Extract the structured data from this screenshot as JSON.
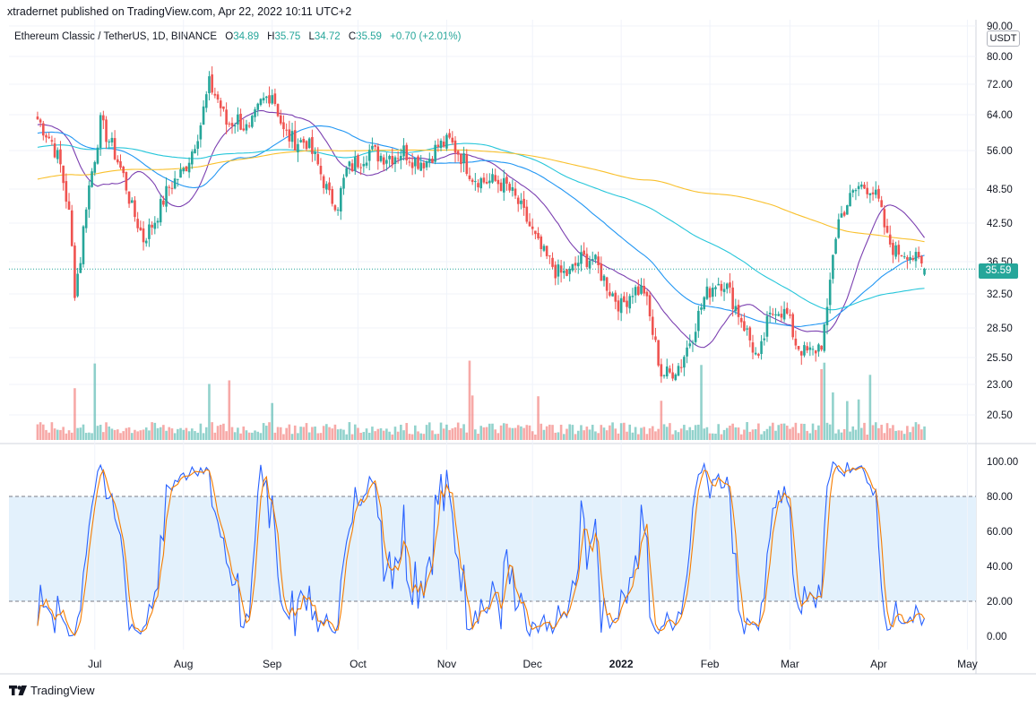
{
  "publisher": "xtradernet published on TradingView.com, Apr 22, 2022 10:11 UTC+2",
  "legend": {
    "symbol": "Ethereum Classic / TetherUS, 1D, BINANCE",
    "open_label": "O",
    "open": "34.89",
    "high_label": "H",
    "high": "35.75",
    "low_label": "L",
    "low": "34.72",
    "close_label": "C",
    "close": "35.59",
    "change": "+0.70 (+2.01%)"
  },
  "currency": "USDT",
  "last_price": "35.59",
  "brand": "TradingView",
  "colors": {
    "up": "#26a69a",
    "down": "#ef5350",
    "ma_short": "#7b3fb0",
    "ma_mid": "#2196f3",
    "ma_long": "#26c6da",
    "ma_200": "#f9c02c",
    "stoch_k": "#2962ff",
    "stoch_d": "#f57c00",
    "band": "#e3f1fc"
  },
  "chart_data": [
    {
      "type": "candlestick",
      "price_axis_labels": [
        "90.00",
        "80.00",
        "72.00",
        "64.00",
        "56.00",
        "48.50",
        "42.50",
        "36.50",
        "32.50",
        "28.50",
        "25.50",
        "23.00",
        "20.50"
      ],
      "price_ticks": [
        90,
        80,
        72,
        64,
        56,
        48.5,
        42.5,
        36.5,
        32.5,
        28.5,
        25.5,
        23,
        20.5
      ],
      "x_labels": [
        "Jul",
        "Aug",
        "Sep",
        "Oct",
        "Nov",
        "Dec",
        "2022",
        "Feb",
        "Mar",
        "Apr",
        "May"
      ],
      "x_label_days": [
        20,
        51,
        82,
        112,
        143,
        173,
        204,
        235,
        263,
        294,
        325
      ],
      "date_range": [
        "2021-06-11",
        "2022-04-22"
      ],
      "close_anchors": [
        [
          0,
          63
        ],
        [
          5,
          58
        ],
        [
          8,
          53
        ],
        [
          11,
          44
        ],
        [
          13,
          33
        ],
        [
          15,
          37
        ],
        [
          17,
          46
        ],
        [
          20,
          55
        ],
        [
          22,
          62
        ],
        [
          26,
          57
        ],
        [
          30,
          51
        ],
        [
          33,
          45
        ],
        [
          37,
          40
        ],
        [
          41,
          43
        ],
        [
          46,
          49
        ],
        [
          51,
          52
        ],
        [
          54,
          56
        ],
        [
          57,
          62
        ],
        [
          60,
          72
        ],
        [
          63,
          68
        ],
        [
          66,
          62
        ],
        [
          70,
          63
        ],
        [
          74,
          60
        ],
        [
          78,
          67
        ],
        [
          82,
          70
        ],
        [
          86,
          60
        ],
        [
          90,
          58
        ],
        [
          94,
          58
        ],
        [
          98,
          53
        ],
        [
          102,
          47
        ],
        [
          105,
          46
        ],
        [
          108,
          52
        ],
        [
          112,
          54
        ],
        [
          116,
          56
        ],
        [
          120,
          55
        ],
        [
          124,
          55
        ],
        [
          128,
          56
        ],
        [
          132,
          54
        ],
        [
          136,
          54
        ],
        [
          140,
          57
        ],
        [
          144,
          58
        ],
        [
          148,
          55
        ],
        [
          152,
          51
        ],
        [
          156,
          50
        ],
        [
          160,
          50
        ],
        [
          164,
          49
        ],
        [
          168,
          46
        ],
        [
          172,
          42
        ],
        [
          175,
          39
        ],
        [
          178,
          37
        ],
        [
          182,
          35
        ],
        [
          186,
          35
        ],
        [
          190,
          37
        ],
        [
          194,
          37
        ],
        [
          197,
          35
        ],
        [
          200,
          33
        ],
        [
          204,
          31
        ],
        [
          208,
          33
        ],
        [
          212,
          33
        ],
        [
          215,
          28
        ],
        [
          218,
          24
        ],
        [
          221,
          24
        ],
        [
          225,
          25
        ],
        [
          229,
          28
        ],
        [
          233,
          32
        ],
        [
          237,
          34
        ],
        [
          240,
          34
        ],
        [
          244,
          31
        ],
        [
          248,
          28
        ],
        [
          252,
          25
        ],
        [
          255,
          29
        ],
        [
          258,
          31
        ],
        [
          262,
          30
        ],
        [
          265,
          27
        ],
        [
          268,
          26
        ],
        [
          271,
          26
        ],
        [
          274,
          27
        ],
        [
          276,
          30
        ],
        [
          278,
          38
        ],
        [
          280,
          43
        ],
        [
          283,
          46
        ],
        [
          287,
          49
        ],
        [
          291,
          49
        ],
        [
          294,
          46
        ],
        [
          297,
          40
        ],
        [
          300,
          38
        ],
        [
          304,
          38
        ],
        [
          310,
          35.59
        ]
      ],
      "moving_averages": [
        {
          "key": "ma_short",
          "period": 20
        },
        {
          "key": "ma_mid",
          "period": 50
        },
        {
          "key": "ma_long",
          "period": 100
        },
        {
          "key": "ma_200",
          "period": 200
        }
      ],
      "volume_spike_days": [
        13,
        20,
        60,
        67,
        82,
        151,
        152,
        175,
        218,
        232,
        274,
        275,
        278,
        283,
        287,
        291
      ]
    },
    {
      "type": "line",
      "name": "",
      "y_axis_labels": [
        "100.00",
        "80.00",
        "60.00",
        "40.00",
        "20.00",
        "0.00"
      ],
      "y_ticks": [
        100,
        80,
        60,
        40,
        20,
        0
      ],
      "band": [
        20,
        80
      ]
    }
  ]
}
